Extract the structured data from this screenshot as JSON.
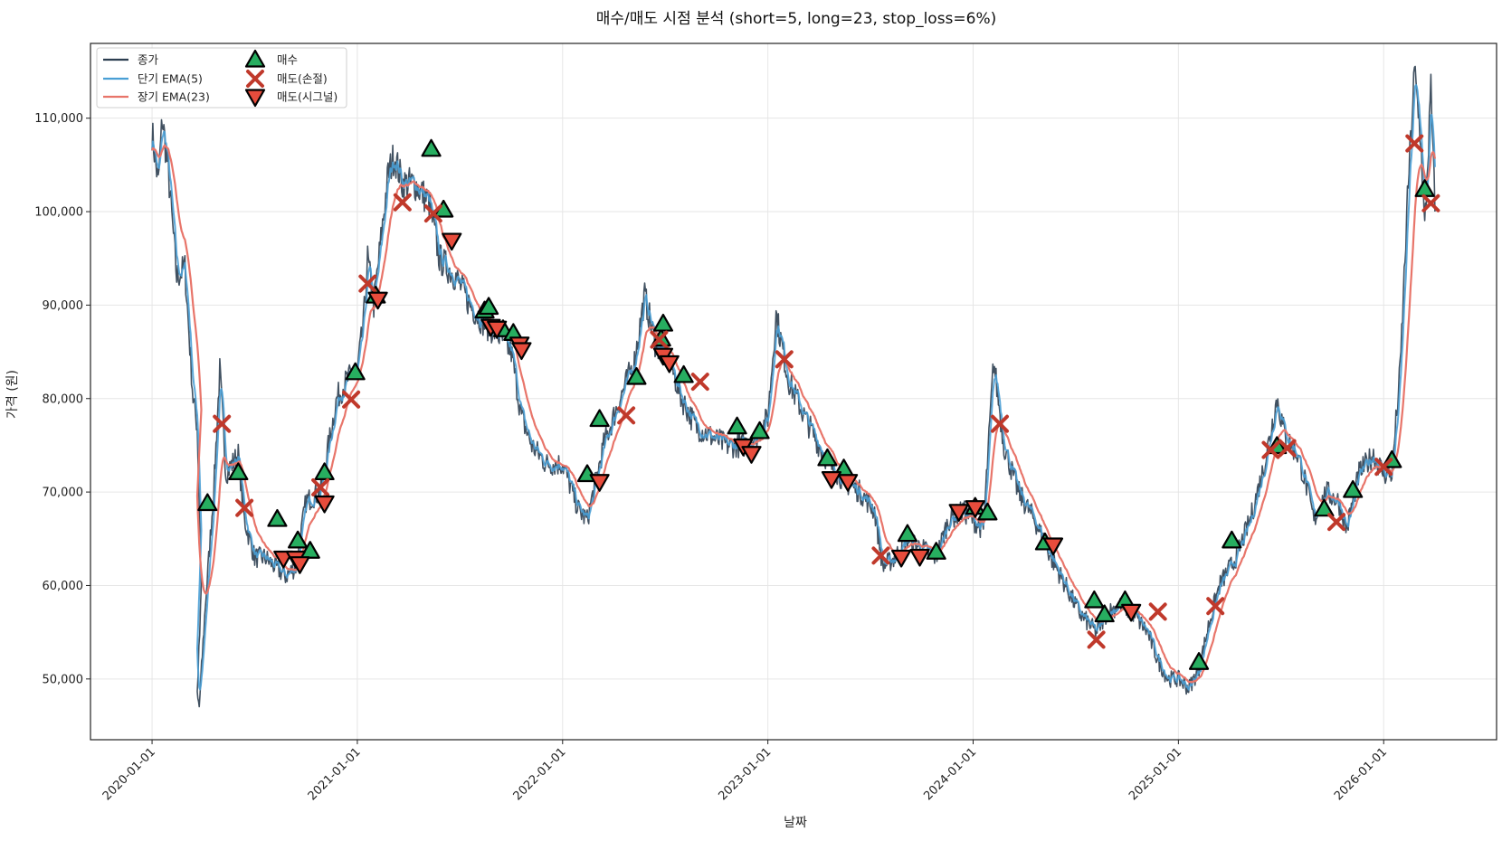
{
  "chart_data": {
    "type": "line",
    "title": "매수/매도 시점 분석 (short=5, long=23, stop_loss=6%)",
    "xlabel": "날짜",
    "ylabel": "가격 (원)",
    "xlim": [
      2019.7,
      2026.55
    ],
    "ylim": [
      43500,
      118000
    ],
    "x_ticks": [
      2020,
      2021,
      2022,
      2023,
      2024,
      2025,
      2026
    ],
    "x_tick_labels": [
      "2020-01-01",
      "2021-01-01",
      "2022-01-01",
      "2023-01-01",
      "2024-01-01",
      "2025-01-01",
      "2026-01-01"
    ],
    "y_ticks": [
      50000,
      60000,
      70000,
      80000,
      90000,
      100000,
      110000
    ],
    "y_tick_labels": [
      "50,000",
      "60,000",
      "70,000",
      "80,000",
      "90,000",
      "100,000",
      "110,000"
    ],
    "grid": true,
    "legend": {
      "position": "top-left",
      "entries": [
        {
          "label": "종가",
          "kind": "line",
          "color": "#2c3e50"
        },
        {
          "label": "단기 EMA(5)",
          "kind": "line",
          "color": "#4a9fd5"
        },
        {
          "label": "장기 EMA(23)",
          "kind": "line",
          "color": "#e8756a"
        },
        {
          "label": "매수",
          "kind": "up-triangle",
          "color": "#27ae60"
        },
        {
          "label": "매도(손절)",
          "kind": "x",
          "color": "#c0392b"
        },
        {
          "label": "매도(시그널)",
          "kind": "down-triangle",
          "color": "#e74c3c"
        }
      ]
    },
    "price_anchors": [
      [
        2020.0,
        108500
      ],
      [
        2020.03,
        103000
      ],
      [
        2020.05,
        110000
      ],
      [
        2020.08,
        104000
      ],
      [
        2020.12,
        93000
      ],
      [
        2020.16,
        94000
      ],
      [
        2020.2,
        80000
      ],
      [
        2020.22,
        77000
      ],
      [
        2020.24,
        60000
      ],
      [
        2020.22,
        48000
      ],
      [
        2020.23,
        47000
      ],
      [
        2020.26,
        58000
      ],
      [
        2020.3,
        70000
      ],
      [
        2020.33,
        83000
      ],
      [
        2020.36,
        72000
      ],
      [
        2020.42,
        74000
      ],
      [
        2020.45,
        67000
      ],
      [
        2020.5,
        63000
      ],
      [
        2020.55,
        63000
      ],
      [
        2020.6,
        62000
      ],
      [
        2020.65,
        61000
      ],
      [
        2020.7,
        62000
      ],
      [
        2020.75,
        69000
      ],
      [
        2020.82,
        70000
      ],
      [
        2020.9,
        80000
      ],
      [
        2020.95,
        82000
      ],
      [
        2021.0,
        83000
      ],
      [
        2021.03,
        88000
      ],
      [
        2021.05,
        95000
      ],
      [
        2021.08,
        90000
      ],
      [
        2021.15,
        104000
      ],
      [
        2021.18,
        106000
      ],
      [
        2021.22,
        103000
      ],
      [
        2021.28,
        103000
      ],
      [
        2021.35,
        101000
      ],
      [
        2021.4,
        95000
      ],
      [
        2021.48,
        93000
      ],
      [
        2021.55,
        90000
      ],
      [
        2021.62,
        88000
      ],
      [
        2021.68,
        87000
      ],
      [
        2021.75,
        85000
      ],
      [
        2021.8,
        78000
      ],
      [
        2021.85,
        75000
      ],
      [
        2021.92,
        73000
      ],
      [
        2022.0,
        73000
      ],
      [
        2022.08,
        68000
      ],
      [
        2022.12,
        67000
      ],
      [
        2022.2,
        75000
      ],
      [
        2022.28,
        80000
      ],
      [
        2022.35,
        84000
      ],
      [
        2022.4,
        91000
      ],
      [
        2022.45,
        86000
      ],
      [
        2022.52,
        84000
      ],
      [
        2022.58,
        80000
      ],
      [
        2022.65,
        77000
      ],
      [
        2022.72,
        76000
      ],
      [
        2022.8,
        75000
      ],
      [
        2022.88,
        75000
      ],
      [
        2022.95,
        76000
      ],
      [
        2023.0,
        78000
      ],
      [
        2023.04,
        89000
      ],
      [
        2023.1,
        82000
      ],
      [
        2023.18,
        78000
      ],
      [
        2023.25,
        75000
      ],
      [
        2023.3,
        73000
      ],
      [
        2023.38,
        71000
      ],
      [
        2023.45,
        70000
      ],
      [
        2023.52,
        68000
      ],
      [
        2023.56,
        62000
      ],
      [
        2023.62,
        63000
      ],
      [
        2023.68,
        65000
      ],
      [
        2023.75,
        64000
      ],
      [
        2023.82,
        63000
      ],
      [
        2023.88,
        67000
      ],
      [
        2023.95,
        68000
      ],
      [
        2024.0,
        67000
      ],
      [
        2024.05,
        66000
      ],
      [
        2024.1,
        84000
      ],
      [
        2024.15,
        75000
      ],
      [
        2024.22,
        70000
      ],
      [
        2024.3,
        67000
      ],
      [
        2024.38,
        63000
      ],
      [
        2024.45,
        60000
      ],
      [
        2024.52,
        57000
      ],
      [
        2024.6,
        55000
      ],
      [
        2024.65,
        57000
      ],
      [
        2024.72,
        58000
      ],
      [
        2024.78,
        57000
      ],
      [
        2024.85,
        55000
      ],
      [
        2024.9,
        52000
      ],
      [
        2024.95,
        50000
      ],
      [
        2025.0,
        50000
      ],
      [
        2025.05,
        49000
      ],
      [
        2025.1,
        51000
      ],
      [
        2025.15,
        56000
      ],
      [
        2025.2,
        60000
      ],
      [
        2025.28,
        63000
      ],
      [
        2025.35,
        67000
      ],
      [
        2025.42,
        73000
      ],
      [
        2025.48,
        80000
      ],
      [
        2025.52,
        76000
      ],
      [
        2025.58,
        74000
      ],
      [
        2025.62,
        71000
      ],
      [
        2025.66,
        67000
      ],
      [
        2025.72,
        70000
      ],
      [
        2025.78,
        69000
      ],
      [
        2025.82,
        66000
      ],
      [
        2025.88,
        72000
      ],
      [
        2025.95,
        74000
      ],
      [
        2026.0,
        72000
      ],
      [
        2026.04,
        72000
      ],
      [
        2026.08,
        83000
      ],
      [
        2026.12,
        103000
      ],
      [
        2026.15,
        115000
      ],
      [
        2026.18,
        108000
      ],
      [
        2026.2,
        98000
      ],
      [
        2026.23,
        113000
      ],
      [
        2026.25,
        100000
      ]
    ],
    "buy_points": [
      [
        2020.27,
        68800
      ],
      [
        2020.42,
        72100
      ],
      [
        2020.61,
        67100
      ],
      [
        2020.71,
        64800
      ],
      [
        2020.77,
        63700
      ],
      [
        2020.84,
        72100
      ],
      [
        2020.99,
        82800
      ],
      [
        2021.09,
        91000
      ],
      [
        2021.36,
        106700
      ],
      [
        2021.42,
        100200
      ],
      [
        2021.62,
        89400
      ],
      [
        2021.64,
        89800
      ],
      [
        2021.71,
        87400
      ],
      [
        2021.76,
        87000
      ],
      [
        2022.12,
        71900
      ],
      [
        2022.18,
        77800
      ],
      [
        2022.36,
        82300
      ],
      [
        2022.48,
        86400
      ],
      [
        2022.49,
        88000
      ],
      [
        2022.59,
        82500
      ],
      [
        2022.85,
        77000
      ],
      [
        2022.96,
        76500
      ],
      [
        2023.29,
        73600
      ],
      [
        2023.37,
        72500
      ],
      [
        2023.68,
        65500
      ],
      [
        2023.82,
        63600
      ],
      [
        2024.01,
        68400
      ],
      [
        2024.07,
        67800
      ],
      [
        2024.35,
        64600
      ],
      [
        2024.59,
        58400
      ],
      [
        2024.64,
        56900
      ],
      [
        2024.74,
        58400
      ],
      [
        2025.1,
        51800
      ],
      [
        2025.26,
        64800
      ],
      [
        2025.48,
        74900
      ],
      [
        2025.71,
        68200
      ],
      [
        2025.85,
        70200
      ],
      [
        2026.04,
        73400
      ],
      [
        2026.2,
        102400
      ]
    ],
    "stop_points": [
      [
        2020.34,
        77300
      ],
      [
        2020.45,
        68300
      ],
      [
        2020.82,
        70500
      ],
      [
        2020.97,
        79900
      ],
      [
        2021.05,
        92300
      ],
      [
        2021.22,
        101000
      ],
      [
        2021.37,
        99800
      ],
      [
        2022.31,
        78200
      ],
      [
        2022.47,
        86300
      ],
      [
        2022.67,
        81800
      ],
      [
        2023.08,
        84200
      ],
      [
        2023.55,
        63200
      ],
      [
        2024.13,
        77300
      ],
      [
        2024.6,
        54200
      ],
      [
        2024.9,
        57200
      ],
      [
        2025.18,
        57800
      ],
      [
        2025.45,
        74500
      ],
      [
        2025.53,
        74700
      ],
      [
        2025.77,
        66800
      ],
      [
        2026.0,
        72700
      ],
      [
        2026.15,
        107300
      ],
      [
        2026.23,
        100900
      ]
    ],
    "signal_points": [
      [
        2020.64,
        62900
      ],
      [
        2020.7,
        62900
      ],
      [
        2020.72,
        62300
      ],
      [
        2020.84,
        68800
      ],
      [
        2021.1,
        90600
      ],
      [
        2021.46,
        96900
      ],
      [
        2021.65,
        87700
      ],
      [
        2021.68,
        87500
      ],
      [
        2021.79,
        85800
      ],
      [
        2021.8,
        85200
      ],
      [
        2022.18,
        71100
      ],
      [
        2022.49,
        84600
      ],
      [
        2022.52,
        83800
      ],
      [
        2022.88,
        74900
      ],
      [
        2022.92,
        74100
      ],
      [
        2023.31,
        71400
      ],
      [
        2023.39,
        71100
      ],
      [
        2023.65,
        63000
      ],
      [
        2023.74,
        63100
      ],
      [
        2023.93,
        67900
      ],
      [
        2024.01,
        68300
      ],
      [
        2024.39,
        64300
      ],
      [
        2024.77,
        57200
      ]
    ]
  }
}
